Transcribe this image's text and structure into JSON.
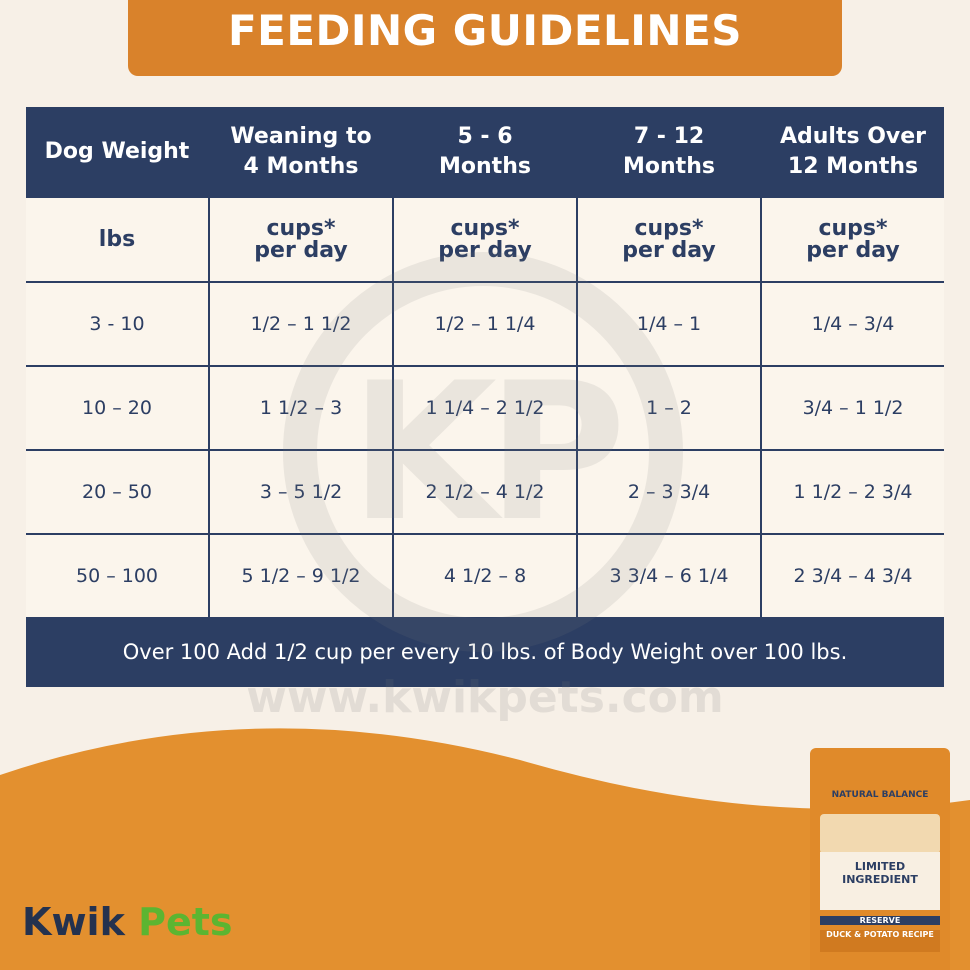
{
  "header": {
    "title": "FEEDING GUIDELINES"
  },
  "table": {
    "headers": [
      [
        "Dog Weight"
      ],
      [
        "Weaning to",
        "4 Months"
      ],
      [
        "5 - 6",
        "Months"
      ],
      [
        "7 - 12",
        "Months"
      ],
      [
        "Adults Over",
        "12 Months"
      ]
    ],
    "units": [
      [
        "lbs"
      ],
      [
        "cups*",
        "per day"
      ],
      [
        "cups*",
        "per day"
      ],
      [
        "cups*",
        "per day"
      ],
      [
        "cups*",
        "per day"
      ]
    ],
    "rows": [
      [
        "3 - 10",
        "1/2 – 1 1/2",
        "1/2 – 1 1/4",
        "1/4 – 1",
        "1/4 – 3/4"
      ],
      [
        "10 – 20",
        "1 1/2 – 3",
        "1 1/4 – 2 1/2",
        "1 – 2",
        "3/4 – 1 1/2"
      ],
      [
        "20 – 50",
        "3 – 5 1/2",
        "2 1/2 – 4 1/2",
        "2 – 3 3/4",
        "1 1/2 – 2 3/4"
      ],
      [
        "50 – 100",
        "5 1/2 – 9 1/2",
        "4 1/2 – 8",
        "3 3/4 – 6 1/4",
        "2 3/4 – 4 3/4"
      ]
    ],
    "footer": "Over 100 Add 1/2 cup per every 10 lbs. of Body Weight over 100 lbs."
  },
  "watermark": {
    "letters": "KP",
    "url": "www.kwikpets.com"
  },
  "brand": {
    "first": "Kwik",
    "second": "Pets"
  },
  "product": {
    "brand": "NATURAL BALANCE",
    "line": "LIMITED INGREDIENT",
    "tier": "RESERVE",
    "recipe": "DUCK & POTATO RECIPE"
  }
}
